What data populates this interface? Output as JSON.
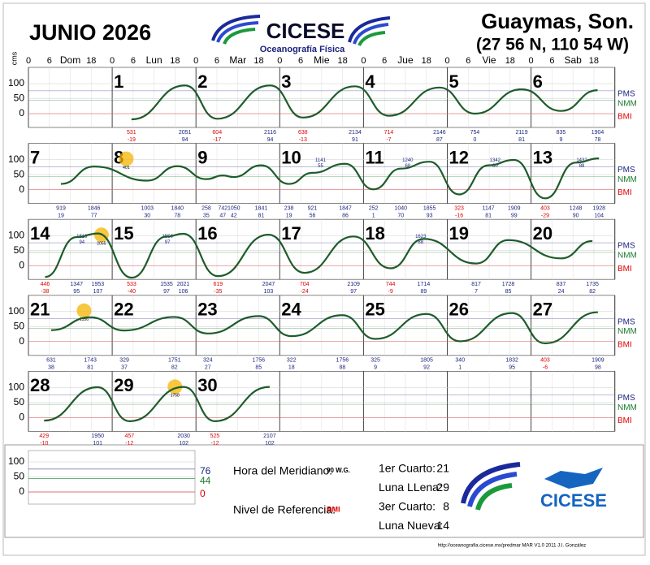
{
  "header": {
    "month_title": "JUNIO 2026",
    "org": "CICESE",
    "dept": "Oceanografía Física",
    "station": "Guaymas, Son.",
    "coords": "(27 56 N, 110 54 W)"
  },
  "day_axis": {
    "hour_ticks": [
      0,
      6,
      18
    ],
    "days": [
      "Dom",
      "Lun",
      "Mar",
      "Mie",
      "Jue",
      "Vie",
      "Sab"
    ]
  },
  "chart_data": {
    "type": "line",
    "y_unit": "cms",
    "ylim": [
      -60,
      115
    ],
    "yticks": [
      0,
      50,
      100
    ],
    "levels": [
      {
        "name": "PMS",
        "value": 76,
        "color": "#1a237e"
      },
      {
        "name": "NMM",
        "value": 44,
        "color": "#1b7a2e"
      },
      {
        "name": "BMI",
        "value": 0,
        "color": "#e00000"
      }
    ],
    "curve_color": "#1e5c2a",
    "rows": [
      {
        "days": [
          {
            "number": 1,
            "extremes": [
              {
                "time": 531,
                "height": -19
              },
              {
                "time": 2051,
                "height": 94
              }
            ]
          },
          {
            "number": 2,
            "extremes": [
              {
                "time": 604,
                "height": -17
              },
              {
                "time": 2116,
                "height": 94
              }
            ]
          },
          {
            "number": 3,
            "extremes": [
              {
                "time": 638,
                "height": -13
              },
              {
                "time": 2134,
                "height": 91
              }
            ]
          },
          {
            "number": 4,
            "extremes": [
              {
                "time": 714,
                "height": -7
              },
              {
                "time": 2146,
                "height": 87
              }
            ]
          },
          {
            "number": 5,
            "extremes": [
              {
                "time": 754,
                "height": 0
              },
              {
                "time": 2119,
                "height": 81
              }
            ]
          },
          {
            "number": 6,
            "extremes": [
              {
                "time": 835,
                "height": 9
              },
              {
                "time": 1904,
                "height": 78
              }
            ]
          }
        ]
      },
      {
        "days": [
          {
            "number": 7,
            "extremes": [
              {
                "time": 919,
                "height": 19
              },
              {
                "time": 1846,
                "height": 77
              }
            ]
          },
          {
            "number": 8,
            "extremes": [
              {
                "time": 1003,
                "height": 30
              },
              {
                "time": 1840,
                "height": 78
              }
            ],
            "moon": 401
          },
          {
            "number": 9,
            "extremes": [
              {
                "time": 258,
                "height": 35
              },
              {
                "time": 742,
                "height": 47
              },
              {
                "time": 1050,
                "height": 42
              },
              {
                "time": 1841,
                "height": 81
              }
            ]
          },
          {
            "number": 10,
            "extremes": [
              {
                "time": 238,
                "height": 19
              },
              {
                "time": 921,
                "height": 56
              },
              {
                "time": 1847,
                "height": 86
              }
            ],
            "inline": {
              "time": 1141,
              "height": 55
            }
          },
          {
            "number": 11,
            "extremes": [
              {
                "time": 252,
                "height": 1
              },
              {
                "time": 1040,
                "height": 70
              },
              {
                "time": 1855,
                "height": 93
              }
            ],
            "inline": {
              "time": 1240,
              "height": 68
            }
          },
          {
            "number": 12,
            "extremes": [
              {
                "time": 323,
                "height": -16
              },
              {
                "time": 1147,
                "height": 81
              },
              {
                "time": 1909,
                "height": 99
              }
            ],
            "inline": {
              "time": 1342,
              "height": 80
            }
          },
          {
            "number": 13,
            "extremes": [
              {
                "time": 403,
                "height": -29
              },
              {
                "time": 1248,
                "height": 90
              },
              {
                "time": 1928,
                "height": 104
              }
            ],
            "inline": {
              "time": 1432,
              "height": 88
            }
          }
        ]
      },
      {
        "days": [
          {
            "number": 14,
            "extremes": [
              {
                "time": 446,
                "height": -38
              },
              {
                "time": 1347,
                "height": 95
              },
              {
                "time": 1953,
                "height": 107
              }
            ],
            "inline": {
              "time": 1519,
              "height": 94
            },
            "moon": 2055
          },
          {
            "number": 15,
            "extremes": [
              {
                "time": 533,
                "height": -40
              },
              {
                "time": 1535,
                "height": 97
              },
              {
                "time": 2021,
                "height": 106
              }
            ],
            "inline": {
              "time": 1550,
              "height": 97
            }
          },
          {
            "number": 16,
            "extremes": [
              {
                "time": 619,
                "height": -35
              },
              {
                "time": 2047,
                "height": 103
              }
            ]
          },
          {
            "number": 17,
            "extremes": [
              {
                "time": 704,
                "height": -24
              },
              {
                "time": 2109,
                "height": 97
              }
            ]
          },
          {
            "number": 18,
            "extremes": [
              {
                "time": 744,
                "height": -9
              },
              {
                "time": 1714,
                "height": 89
              }
            ],
            "inline": {
              "time": 1623,
              "height": 88
            }
          },
          {
            "number": 19,
            "extremes": [
              {
                "time": 817,
                "height": 7
              },
              {
                "time": 1728,
                "height": 85
              }
            ]
          },
          {
            "number": 20,
            "extremes": [
              {
                "time": 837,
                "height": 24
              },
              {
                "time": 1735,
                "height": 82
              }
            ]
          }
        ]
      },
      {
        "days": [
          {
            "number": 21,
            "extremes": [
              {
                "time": 631,
                "height": 38
              },
              {
                "time": 1743,
                "height": 81
              }
            ],
            "moon": 1556
          },
          {
            "number": 22,
            "extremes": [
              {
                "time": 329,
                "height": 37
              },
              {
                "time": 1751,
                "height": 82
              }
            ]
          },
          {
            "number": 23,
            "extremes": [
              {
                "time": 324,
                "height": 27
              },
              {
                "time": 1756,
                "height": 85
              }
            ]
          },
          {
            "number": 24,
            "extremes": [
              {
                "time": 322,
                "height": 18
              },
              {
                "time": 1756,
                "height": 88
              }
            ]
          },
          {
            "number": 25,
            "extremes": [
              {
                "time": 325,
                "height": 9
              },
              {
                "time": 1805,
                "height": 92
              }
            ]
          },
          {
            "number": 26,
            "extremes": [
              {
                "time": 340,
                "height": 1
              },
              {
                "time": 1832,
                "height": 95
              }
            ]
          },
          {
            "number": 27,
            "extremes": [
              {
                "time": 403,
                "height": -6
              },
              {
                "time": 1909,
                "height": 98
              }
            ]
          }
        ]
      },
      {
        "days": [
          {
            "number": 28,
            "extremes": [
              {
                "time": 429,
                "height": -10
              },
              {
                "time": 1950,
                "height": 101
              }
            ]
          },
          {
            "number": 29,
            "extremes": [
              {
                "time": 457,
                "height": -12
              },
              {
                "time": 2030,
                "height": 102
              }
            ],
            "moon": 1758
          },
          {
            "number": 30,
            "extremes": [
              {
                "time": 525,
                "height": -12
              },
              {
                "time": 2107,
                "height": 102
              }
            ]
          }
        ]
      }
    ]
  },
  "legend": {
    "meridian_label": "Hora del Meridiano:",
    "meridian_value": "90 W.G.",
    "reference_label": "Nivel de Referencia:",
    "reference_value": "BMI",
    "phases": [
      {
        "name": "1er Cuarto:",
        "day": 21
      },
      {
        "name": "Luna LLena:",
        "day": 29
      },
      {
        "name": "3er Cuarto:",
        "day": 8
      },
      {
        "name": "Luna Nueva:",
        "day": 14
      }
    ]
  },
  "footer": "http://oceanografia.cicese.mx/predmar  MAR V1.0 2011 J.I. González"
}
